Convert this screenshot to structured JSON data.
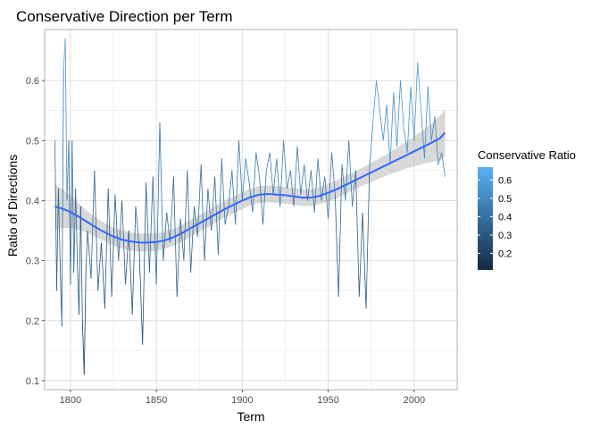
{
  "chart_data": {
    "type": "line",
    "title": "Conservative Direction per Term",
    "xlabel": "Term",
    "ylabel": "Ratio of Directions",
    "xlim": [
      1785,
      2025
    ],
    "ylim": [
      0.085,
      0.685
    ],
    "x_ticks": [
      1800,
      1850,
      1900,
      1950,
      2000
    ],
    "x_tick_labels": [
      "1800",
      "1850",
      "1900",
      "1950",
      "2000"
    ],
    "y_ticks": [
      0.1,
      0.2,
      0.3,
      0.4,
      0.5,
      0.6
    ],
    "y_tick_labels": [
      "0.1",
      "0.2",
      "0.3",
      "0.4",
      "0.5",
      "0.6"
    ],
    "grid": true,
    "legend": {
      "title": "Conservative Ratio",
      "placement": "right",
      "range": [
        0.11,
        0.67
      ],
      "ticks": [
        0.2,
        0.3,
        0.4,
        0.5,
        0.6
      ],
      "tick_labels": [
        "0.2",
        "0.3",
        "0.4",
        "0.5",
        "0.6"
      ],
      "color_low": "#132b43",
      "color_high": "#56b1f7"
    },
    "smooth_color": "#3366ff",
    "band_color": "#bebebe",
    "series": {
      "x": [
        1791,
        1792,
        1793,
        1794,
        1795,
        1796,
        1797,
        1798,
        1799,
        1800,
        1801,
        1802,
        1803,
        1804,
        1805,
        1806,
        1807,
        1808,
        1809,
        1810,
        1812,
        1814,
        1816,
        1818,
        1820,
        1822,
        1824,
        1826,
        1828,
        1830,
        1832,
        1834,
        1836,
        1838,
        1840,
        1842,
        1844,
        1846,
        1848,
        1850,
        1852,
        1854,
        1856,
        1858,
        1860,
        1862,
        1864,
        1866,
        1868,
        1870,
        1872,
        1874,
        1876,
        1878,
        1880,
        1882,
        1884,
        1886,
        1888,
        1890,
        1892,
        1894,
        1896,
        1898,
        1900,
        1902,
        1904,
        1906,
        1908,
        1910,
        1912,
        1914,
        1916,
        1918,
        1920,
        1922,
        1924,
        1926,
        1928,
        1930,
        1932,
        1934,
        1936,
        1938,
        1940,
        1942,
        1944,
        1946,
        1948,
        1950,
        1952,
        1954,
        1956,
        1958,
        1960,
        1962,
        1964,
        1966,
        1968,
        1970,
        1972,
        1974,
        1976,
        1978,
        1980,
        1982,
        1984,
        1986,
        1988,
        1990,
        1992,
        1994,
        1996,
        1998,
        2000,
        2002,
        2004,
        2006,
        2008,
        2010,
        2012,
        2014,
        2016,
        2018
      ],
      "y": [
        0.5,
        0.25,
        0.42,
        0.3,
        0.19,
        0.62,
        0.67,
        0.4,
        0.5,
        0.26,
        0.5,
        0.28,
        0.42,
        0.3,
        0.21,
        0.39,
        0.2,
        0.11,
        0.28,
        0.35,
        0.27,
        0.45,
        0.25,
        0.33,
        0.22,
        0.42,
        0.24,
        0.41,
        0.3,
        0.4,
        0.26,
        0.35,
        0.21,
        0.39,
        0.32,
        0.16,
        0.43,
        0.28,
        0.44,
        0.26,
        0.53,
        0.3,
        0.38,
        0.33,
        0.44,
        0.24,
        0.37,
        0.3,
        0.45,
        0.28,
        0.39,
        0.34,
        0.46,
        0.3,
        0.42,
        0.35,
        0.44,
        0.31,
        0.47,
        0.36,
        0.39,
        0.45,
        0.36,
        0.5,
        0.4,
        0.47,
        0.43,
        0.38,
        0.48,
        0.44,
        0.36,
        0.45,
        0.48,
        0.41,
        0.47,
        0.39,
        0.5,
        0.42,
        0.45,
        0.39,
        0.49,
        0.41,
        0.46,
        0.4,
        0.45,
        0.38,
        0.47,
        0.4,
        0.44,
        0.37,
        0.48,
        0.41,
        0.24,
        0.46,
        0.4,
        0.5,
        0.39,
        0.45,
        0.24,
        0.38,
        0.22,
        0.45,
        0.53,
        0.6,
        0.55,
        0.5,
        0.56,
        0.46,
        0.58,
        0.49,
        0.6,
        0.52,
        0.48,
        0.59,
        0.5,
        0.63,
        0.55,
        0.47,
        0.59,
        0.5,
        0.54,
        0.46,
        0.48,
        0.44
      ],
      "smooth": [
        0.39,
        0.387,
        0.381,
        0.373,
        0.364,
        0.355,
        0.347,
        0.34,
        0.335,
        0.332,
        0.33,
        0.33,
        0.331,
        0.334,
        0.339,
        0.346,
        0.354,
        0.362,
        0.37,
        0.378,
        0.386,
        0.393,
        0.4,
        0.406,
        0.41,
        0.411,
        0.41,
        0.409,
        0.407,
        0.405,
        0.405,
        0.408,
        0.413,
        0.419,
        0.426,
        0.433,
        0.44,
        0.447,
        0.454,
        0.461,
        0.468,
        0.475,
        0.482,
        0.489,
        0.496,
        0.504,
        0.513,
        0.522,
        0.531,
        0.541,
        0.548,
        0.554
      ],
      "smooth_x": [
        1791,
        1795,
        1800,
        1805,
        1810,
        1815,
        1820,
        1825,
        1830,
        1835,
        1840,
        1845,
        1850,
        1855,
        1860,
        1865,
        1870,
        1875,
        1880,
        1885,
        1890,
        1895,
        1900,
        1905,
        1910,
        1915,
        1920,
        1925,
        1930,
        1935,
        1940,
        1945,
        1950,
        1955,
        1960,
        1965,
        1970,
        1975,
        1980,
        1985,
        1990,
        1995,
        2000,
        2005,
        2010,
        2015,
        2018,
        2018,
        2018,
        2018,
        2018,
        2018
      ],
      "band_half": [
        0.038,
        0.033,
        0.027,
        0.022,
        0.018,
        0.016,
        0.015,
        0.015,
        0.015,
        0.015,
        0.015,
        0.015,
        0.015,
        0.014,
        0.014,
        0.014,
        0.014,
        0.014,
        0.014,
        0.014,
        0.014,
        0.014,
        0.014,
        0.014,
        0.014,
        0.014,
        0.014,
        0.014,
        0.014,
        0.014,
        0.014,
        0.014,
        0.015,
        0.015,
        0.015,
        0.015,
        0.015,
        0.016,
        0.017,
        0.018,
        0.02,
        0.022,
        0.025,
        0.028,
        0.032,
        0.037,
        0.04,
        0.04,
        0.04,
        0.04,
        0.04,
        0.04
      ]
    }
  }
}
